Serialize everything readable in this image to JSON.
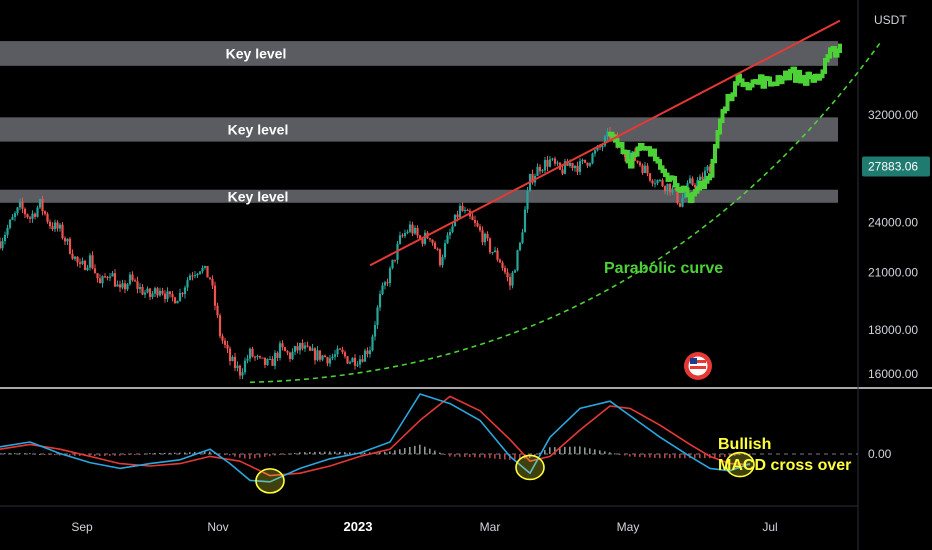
{
  "chart_data": {
    "type": "candlestick",
    "unit_label": "USDT",
    "current_price": "27883.06",
    "price_ticks": [
      {
        "value": 32000,
        "label": "32000.00"
      },
      {
        "value": 24000,
        "label": "24000.00"
      },
      {
        "value": 21000,
        "label": "21000.00"
      },
      {
        "value": 18000,
        "label": "18000.00"
      },
      {
        "value": 16000,
        "label": "16000.00"
      }
    ],
    "macd_ticks": [
      {
        "value": 0,
        "label": "0.00"
      }
    ],
    "time_labels": [
      {
        "label": "Sep",
        "month_index": 0
      },
      {
        "label": "Nov",
        "month_index": 2
      },
      {
        "label": "2023",
        "month_index": 4
      },
      {
        "label": "Mar",
        "month_index": 6
      },
      {
        "label": "May",
        "month_index": 8
      },
      {
        "label": "Jul",
        "month_index": 10
      }
    ],
    "key_levels": [
      {
        "label": "Key level",
        "low": 36500,
        "high": 39000
      },
      {
        "label": "Key level",
        "low": 29800,
        "high": 31800
      },
      {
        "label": "Key level",
        "low": 25300,
        "high": 26200
      }
    ],
    "annotations": {
      "parabolic": "Parabolic curve",
      "bullish": "Bullish",
      "macd_cross": "MACD cross over"
    },
    "colors": {
      "up": "#26a69a",
      "down": "#ef5350",
      "projection": "#4cd137",
      "trendline": "#e53935",
      "curve": "#4cd137",
      "macd": "#2aa7e0",
      "signal": "#e53935",
      "annotation": "#ffff3b"
    },
    "price_path": [
      [
        0,
        22800
      ],
      [
        2,
        25000
      ],
      [
        3,
        24300
      ],
      [
        4,
        25200
      ],
      [
        5,
        23900
      ],
      [
        6,
        23500
      ],
      [
        7,
        22400
      ],
      [
        8,
        21200
      ],
      [
        9,
        21800
      ],
      [
        10,
        20300
      ],
      [
        11,
        21100
      ],
      [
        12,
        19900
      ],
      [
        13,
        20600
      ],
      [
        14,
        20100
      ],
      [
        15,
        19700
      ],
      [
        16,
        20200
      ],
      [
        17,
        19500
      ],
      [
        18,
        19800
      ],
      [
        19,
        20900
      ],
      [
        20,
        21300
      ],
      [
        21,
        20700
      ],
      [
        22,
        17800
      ],
      [
        23,
        16600
      ],
      [
        24,
        16100
      ],
      [
        25,
        16900
      ],
      [
        26,
        16500
      ],
      [
        27,
        16400
      ],
      [
        28,
        17100
      ],
      [
        29,
        16800
      ],
      [
        30,
        17200
      ],
      [
        31,
        16900
      ],
      [
        32,
        16800
      ],
      [
        33,
        16700
      ],
      [
        34,
        16900
      ],
      [
        35,
        16600
      ],
      [
        36,
        16700
      ],
      [
        37,
        17200
      ],
      [
        38,
        19600
      ],
      [
        39,
        21000
      ],
      [
        40,
        22900
      ],
      [
        41,
        23700
      ],
      [
        42,
        22900
      ],
      [
        43,
        23200
      ],
      [
        44,
        21700
      ],
      [
        45,
        23300
      ],
      [
        46,
        24900
      ],
      [
        47,
        24200
      ],
      [
        48,
        23400
      ],
      [
        49,
        22400
      ],
      [
        50,
        21700
      ],
      [
        51,
        20300
      ],
      [
        52,
        22600
      ],
      [
        53,
        26900
      ],
      [
        54,
        27900
      ],
      [
        55,
        28300
      ],
      [
        56,
        27500
      ],
      [
        57,
        28100
      ],
      [
        58,
        27900
      ],
      [
        59,
        28500
      ],
      [
        60,
        29300
      ],
      [
        61,
        30400
      ]
    ],
    "projection_path": [
      [
        61,
        30400
      ],
      [
        62,
        29600
      ],
      [
        63,
        28300
      ],
      [
        64,
        29200
      ],
      [
        65,
        28900
      ],
      [
        66,
        28200
      ],
      [
        67,
        27000
      ],
      [
        68,
        26500
      ],
      [
        69,
        25200
      ],
      [
        70,
        26600
      ],
      [
        71,
        27200
      ],
      [
        72,
        31500
      ],
      [
        73,
        33900
      ],
      [
        74,
        35400
      ],
      [
        75,
        34700
      ],
      [
        76,
        35100
      ],
      [
        77,
        34800
      ],
      [
        78,
        35400
      ],
      [
        79,
        35900
      ],
      [
        80,
        35300
      ],
      [
        81,
        35300
      ],
      [
        82,
        35500
      ],
      [
        83,
        37600
      ],
      [
        84,
        38500
      ]
    ],
    "actual_after": [
      [
        61,
        30400
      ],
      [
        62,
        29300
      ],
      [
        63,
        28800
      ],
      [
        64,
        28100
      ],
      [
        65,
        27200
      ],
      [
        66,
        26700
      ],
      [
        67,
        26400
      ],
      [
        68,
        25300
      ],
      [
        69,
        26600
      ],
      [
        70,
        26800
      ],
      [
        71,
        27900
      ]
    ],
    "trendline": [
      [
        37,
        21400
      ],
      [
        84,
        41200
      ]
    ],
    "parabolic_curve": {
      "start": [
        25,
        15650
      ],
      "end": [
        88,
        38800
      ]
    },
    "macd": {
      "range": [
        -700,
        1400
      ],
      "macd_line": [
        [
          0,
          150
        ],
        [
          3,
          250
        ],
        [
          6,
          10
        ],
        [
          9,
          -180
        ],
        [
          12,
          -300
        ],
        [
          15,
          -200
        ],
        [
          18,
          -120
        ],
        [
          21,
          100
        ],
        [
          23,
          -200
        ],
        [
          25,
          -550
        ],
        [
          27,
          -580
        ],
        [
          30,
          -300
        ],
        [
          33,
          -100
        ],
        [
          36,
          20
        ],
        [
          39,
          250
        ],
        [
          42,
          1250
        ],
        [
          45,
          1050
        ],
        [
          48,
          700
        ],
        [
          51,
          -50
        ],
        [
          53,
          -400
        ],
        [
          55,
          350
        ],
        [
          58,
          950
        ],
        [
          61,
          1100
        ],
        [
          63,
          800
        ],
        [
          66,
          350
        ],
        [
          69,
          -50
        ],
        [
          71,
          -300
        ],
        [
          73,
          -350
        ],
        [
          75,
          -200
        ]
      ],
      "signal_line": [
        [
          0,
          100
        ],
        [
          3,
          200
        ],
        [
          6,
          100
        ],
        [
          9,
          -50
        ],
        [
          12,
          -200
        ],
        [
          15,
          -250
        ],
        [
          18,
          -200
        ],
        [
          21,
          -50
        ],
        [
          24,
          -150
        ],
        [
          27,
          -450
        ],
        [
          30,
          -400
        ],
        [
          33,
          -250
        ],
        [
          36,
          -50
        ],
        [
          39,
          100
        ],
        [
          42,
          700
        ],
        [
          45,
          1200
        ],
        [
          48,
          900
        ],
        [
          51,
          300
        ],
        [
          53,
          -150
        ],
        [
          55,
          -50
        ],
        [
          58,
          500
        ],
        [
          61,
          1000
        ],
        [
          63,
          950
        ],
        [
          66,
          600
        ],
        [
          69,
          200
        ],
        [
          71,
          -50
        ],
        [
          73,
          -200
        ],
        [
          75,
          -220
        ]
      ],
      "cross_markers": [
        [
          27,
          -560
        ],
        [
          53,
          -280
        ],
        [
          74,
          -220
        ]
      ]
    }
  }
}
